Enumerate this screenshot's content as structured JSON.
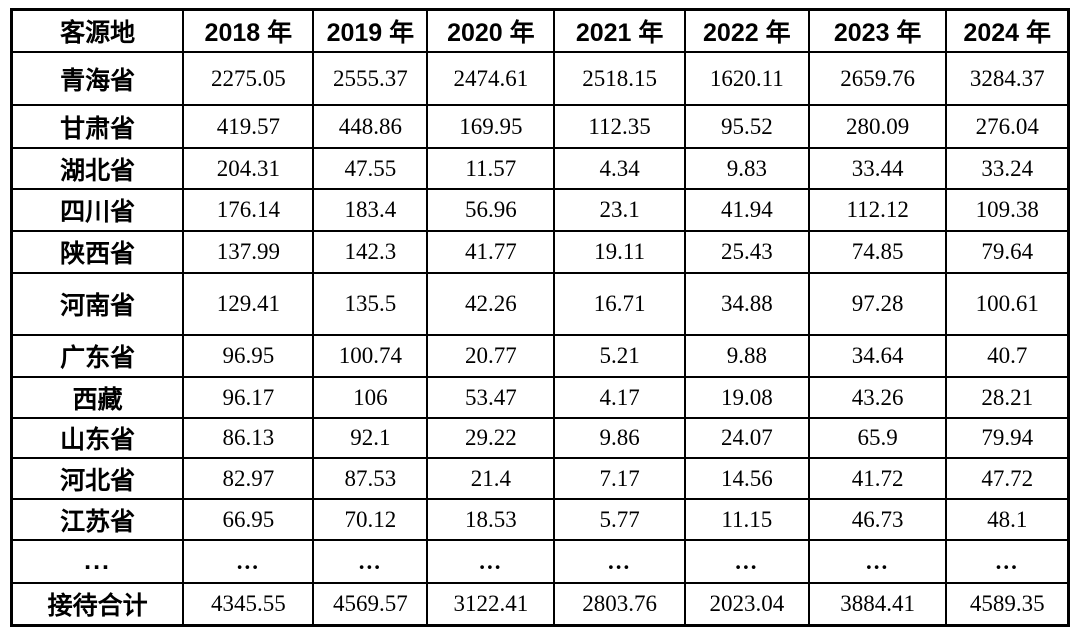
{
  "table": {
    "name": "tourist-source-by-year-table",
    "columns": [
      "客源地",
      "2018 年",
      "2019 年",
      "2020 年",
      "2021 年",
      "2022 年",
      "2023 年",
      "2024 年"
    ],
    "rows": [
      {
        "label": "青海省",
        "values": [
          "2275.05",
          "2555.37",
          "2474.61",
          "2518.15",
          "1620.11",
          "2659.76",
          "3284.37"
        ]
      },
      {
        "label": "甘肃省",
        "values": [
          "419.57",
          "448.86",
          "169.95",
          "112.35",
          "95.52",
          "280.09",
          "276.04"
        ]
      },
      {
        "label": "湖北省",
        "values": [
          "204.31",
          "47.55",
          "11.57",
          "4.34",
          "9.83",
          "33.44",
          "33.24"
        ]
      },
      {
        "label": "四川省",
        "values": [
          "176.14",
          "183.4",
          "56.96",
          "23.1",
          "41.94",
          "112.12",
          "109.38"
        ]
      },
      {
        "label": "陕西省",
        "values": [
          "137.99",
          "142.3",
          "41.77",
          "19.11",
          "25.43",
          "74.85",
          "79.64"
        ]
      },
      {
        "label": "河南省",
        "values": [
          "129.41",
          "135.5",
          "42.26",
          "16.71",
          "34.88",
          "97.28",
          "100.61"
        ]
      },
      {
        "label": "广东省",
        "values": [
          "96.95",
          "100.74",
          "20.77",
          "5.21",
          "9.88",
          "34.64",
          "40.7"
        ]
      },
      {
        "label": "西藏",
        "values": [
          "96.17",
          "106",
          "53.47",
          "4.17",
          "19.08",
          "43.26",
          "28.21"
        ]
      },
      {
        "label": "山东省",
        "values": [
          "86.13",
          "92.1",
          "29.22",
          "9.86",
          "24.07",
          "65.9",
          "79.94"
        ]
      },
      {
        "label": "河北省",
        "values": [
          "82.97",
          "87.53",
          "21.4",
          "7.17",
          "14.56",
          "41.72",
          "47.72"
        ]
      },
      {
        "label": "江苏省",
        "values": [
          "66.95",
          "70.12",
          "18.53",
          "5.77",
          "11.15",
          "46.73",
          "48.1"
        ]
      },
      {
        "label": "...",
        "values": [
          "...",
          "...",
          "...",
          "...",
          "...",
          "...",
          "..."
        ]
      },
      {
        "label": "接待合计",
        "values": [
          "4345.55",
          "4569.57",
          "3122.41",
          "2803.76",
          "2023.04",
          "3884.41",
          "4589.35"
        ]
      }
    ]
  }
}
